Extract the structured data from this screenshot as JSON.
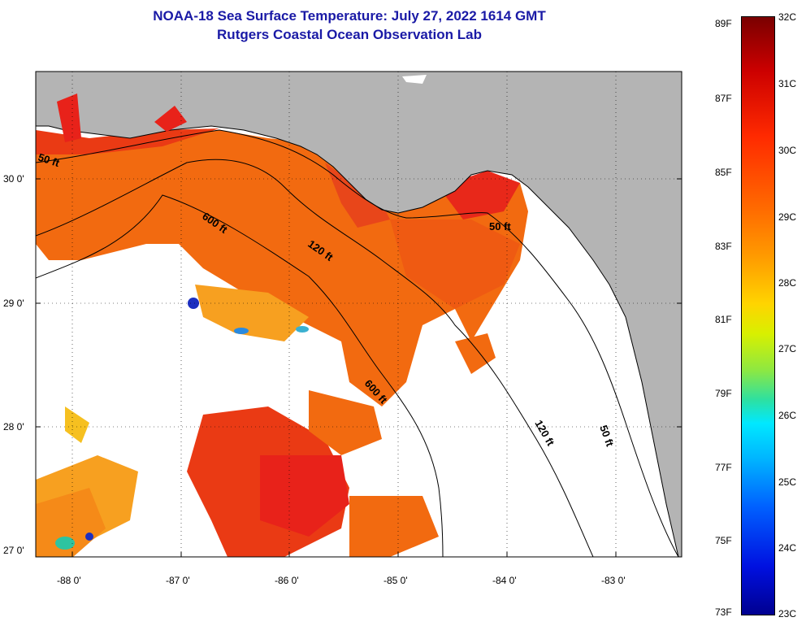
{
  "header": {
    "title": "NOAA-18 Sea Surface Temperature:  July 27, 2022 1614 GMT",
    "subtitle": "Rutgers Coastal Ocean Observation Lab"
  },
  "map": {
    "lat_ticks": [
      "30 0'",
      "29 0'",
      "28 0'",
      "27 0'"
    ],
    "lon_ticks": [
      "-88 0'",
      "-87 0'",
      "-86 0'",
      "-85 0'",
      "-84 0'",
      "-83 0'"
    ],
    "contour_labels": [
      "50 ft",
      "600 ft",
      "120 ft",
      "50 ft",
      "600 ft",
      "120 ft",
      "50 ft"
    ],
    "colors": {
      "land": "#b4b4b4",
      "cloud": "#ffffff",
      "sst_warm": "#f26a10",
      "sst_hot": "#e8221a"
    }
  },
  "colorbar": {
    "fahrenheit": [
      "89F",
      "87F",
      "85F",
      "83F",
      "81F",
      "79F",
      "77F",
      "75F",
      "73F"
    ],
    "celsius": [
      "32C",
      "31C",
      "30C",
      "29C",
      "28C",
      "27C",
      "26C",
      "25C",
      "24C",
      "23C"
    ]
  }
}
